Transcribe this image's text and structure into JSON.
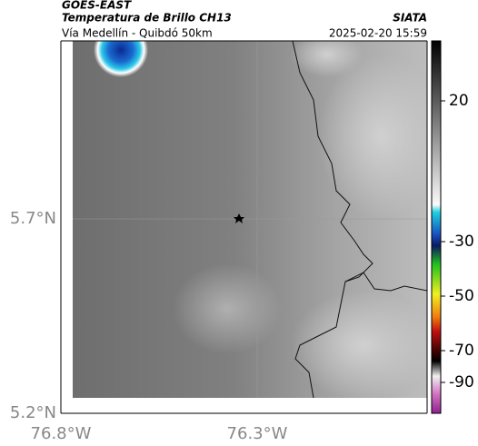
{
  "header": {
    "satellite": "GOES-EAST",
    "product": "Temperatura de Brillo CH13",
    "route": "Vía Medellín - Quibdó 50km",
    "source": "SIATA",
    "datetime": "2025-02-20 15:59"
  },
  "map": {
    "lat_labels": [
      "5.7°N",
      "5.2°N"
    ],
    "lon_labels": [
      "76.8°W",
      "76.3°W"
    ]
  },
  "colorbar": {
    "labels": [
      "20",
      "-30",
      "-50",
      "-70",
      "-90"
    ]
  }
}
